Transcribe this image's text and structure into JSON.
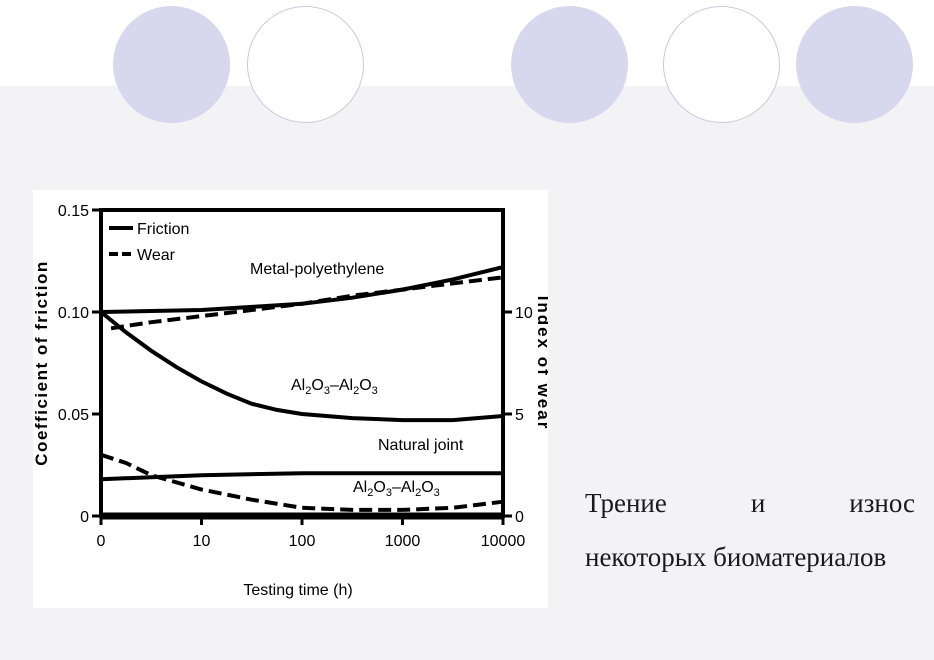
{
  "slide": {
    "caption_words": [
      "Трение",
      "и",
      "износ"
    ],
    "caption_line2": "некоторых биоматериалов",
    "colors": {
      "circle_fill": "#d7d7ee",
      "circle_outline": "#c9c9dd",
      "panel_background": "#f3f3f6"
    }
  },
  "chart_data": {
    "type": "line",
    "xlabel": "Testing time (h)",
    "ylabel_left": "Coefficient of friction",
    "ylabel_right": "Index of wear",
    "x_ticks": [
      "0",
      "10",
      "100",
      "1000",
      "10000"
    ],
    "y_left_ticks": [
      "0",
      "0.05",
      "0.10",
      "0.15"
    ],
    "y_right_ticks": [
      "0",
      "5",
      "10"
    ],
    "ylim_left": [
      0,
      0.15
    ],
    "ylim_right": [
      0,
      15
    ],
    "grid": false,
    "legend_position": "top-left",
    "legend": [
      {
        "label": "Friction",
        "style": "solid"
      },
      {
        "label": "Wear",
        "style": "dashed"
      }
    ],
    "annotations": {
      "metal_polyethylene": "Metal-polyethylene",
      "al2o3_upper": {
        "a": "Al",
        "s1": "2",
        "b": "O",
        "s2": "3",
        "dash": "–",
        "c": "Al",
        "s3": "2",
        "d": "O",
        "s4": "3"
      },
      "natural_joint": "Natural joint",
      "al2o3_lower": {
        "a": "Al",
        "s1": "2",
        "b": "O",
        "s2": "3",
        "dash": "–",
        "c": "Al",
        "s3": "2",
        "d": "O",
        "s4": "3"
      }
    },
    "x_positions": [
      0,
      1,
      2,
      3,
      4
    ],
    "series": [
      {
        "curve": "Metal-polyethylene",
        "measure": "friction",
        "axis": "left",
        "style": "solid",
        "x": [
          0,
          0.5,
          1,
          1.5,
          2,
          2.5,
          3,
          3.5,
          4
        ],
        "y": [
          0.1,
          0.1005,
          0.101,
          0.1025,
          0.104,
          0.107,
          0.111,
          0.116,
          0.122
        ]
      },
      {
        "curve": "Metal-polyethylene",
        "measure": "wear",
        "axis": "right",
        "style": "dashed",
        "x": [
          0.1,
          0.5,
          1,
          1.5,
          2,
          2.5,
          3,
          3.5,
          4
        ],
        "y": [
          9.2,
          9.5,
          9.8,
          10.1,
          10.4,
          10.8,
          11.1,
          11.4,
          11.7
        ]
      },
      {
        "curve": "Al2O3-Al2O3",
        "measure": "friction",
        "axis": "left",
        "style": "solid",
        "x": [
          0,
          0.25,
          0.5,
          0.75,
          1,
          1.25,
          1.5,
          1.75,
          2,
          2.5,
          3,
          3.5,
          4
        ],
        "y": [
          0.1,
          0.09,
          0.081,
          0.073,
          0.066,
          0.06,
          0.055,
          0.052,
          0.05,
          0.048,
          0.047,
          0.047,
          0.049
        ]
      },
      {
        "curve": "Natural joint",
        "measure": "friction",
        "axis": "left",
        "style": "solid",
        "x": [
          0,
          0.5,
          1,
          2,
          3,
          4
        ],
        "y": [
          0.018,
          0.019,
          0.02,
          0.021,
          0.021,
          0.021
        ]
      },
      {
        "curve": "Al2O3-Al2O3",
        "measure": "wear",
        "axis": "right",
        "style": "dashed",
        "x": [
          0,
          0.25,
          0.5,
          1,
          1.5,
          2,
          2.5,
          3,
          3.5,
          4
        ],
        "y": [
          3.0,
          2.6,
          2.0,
          1.3,
          0.8,
          0.4,
          0.3,
          0.3,
          0.4,
          0.7
        ]
      },
      {
        "curve": "baseline",
        "measure": "wear",
        "axis": "right",
        "style": "solid",
        "x": [
          0,
          4
        ],
        "y": [
          0,
          0
        ]
      }
    ]
  }
}
